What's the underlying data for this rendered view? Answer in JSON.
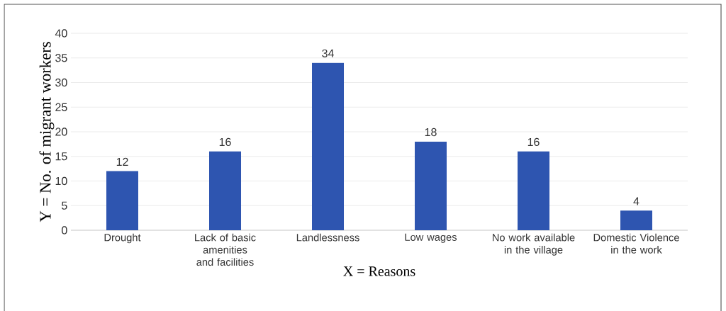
{
  "chart_data": {
    "type": "bar",
    "xlabel": "X = Reasons",
    "ylabel": "Y = No. of migrant workers",
    "categories": [
      "Drought",
      "Lack of basic amenities and facilities",
      "Landlessness",
      "Low wages",
      "No work available in the village",
      "Domestic Violence in the work"
    ],
    "values": [
      12,
      16,
      34,
      18,
      16,
      4
    ],
    "color": "#2e55b0",
    "data_labels": true,
    "ylim": [
      0,
      40
    ],
    "yticks": [
      0,
      5,
      10,
      15,
      20,
      25,
      30,
      35,
      40
    ],
    "grid": "y"
  }
}
